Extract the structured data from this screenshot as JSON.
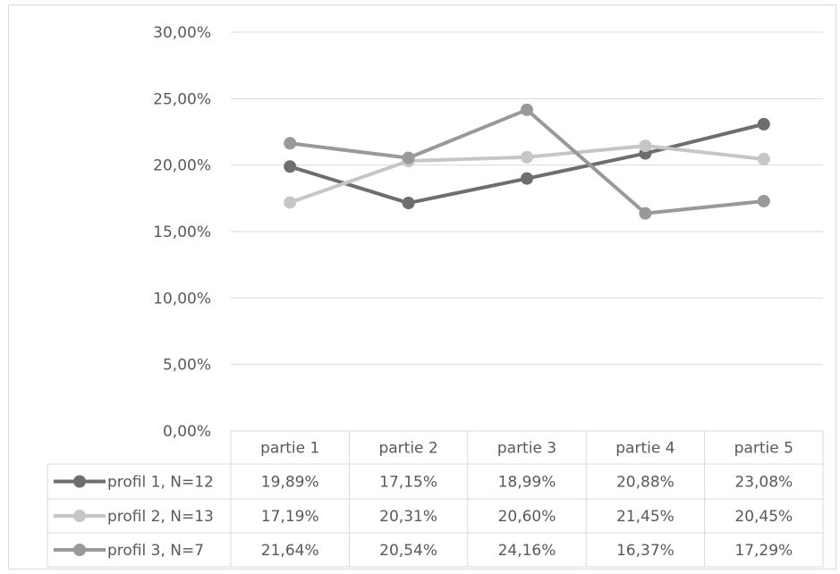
{
  "chart_data": {
    "type": "line",
    "title": "",
    "xlabel": "",
    "ylabel": "",
    "categories": [
      "partie 1",
      "partie 2",
      "partie 3",
      "partie 4",
      "partie 5"
    ],
    "ylim": [
      0,
      30
    ],
    "y_ticks": [
      "0,00%",
      "5,00%",
      "10,00%",
      "15,00%",
      "20,00%",
      "25,00%",
      "30,00%"
    ],
    "grid": true,
    "legend": "data-table",
    "series": [
      {
        "name": "profil 1, N=12",
        "color": "#6e6e6e",
        "values": [
          19.89,
          17.15,
          18.99,
          20.88,
          23.08
        ],
        "labels": [
          "19,89%",
          "17,15%",
          "18,99%",
          "20,88%",
          "23,08%"
        ]
      },
      {
        "name": "profil 2, N=13",
        "color": "#c6c6c6",
        "values": [
          17.19,
          20.31,
          20.6,
          21.45,
          20.45
        ],
        "labels": [
          "17,19%",
          "20,31%",
          "20,60%",
          "21,45%",
          "20,45%"
        ]
      },
      {
        "name": "profil 3, N=7",
        "color": "#999999",
        "values": [
          21.64,
          20.54,
          24.16,
          16.37,
          17.29
        ],
        "labels": [
          "21,64%",
          "20,54%",
          "24,16%",
          "16,37%",
          "17,29%"
        ]
      }
    ]
  }
}
